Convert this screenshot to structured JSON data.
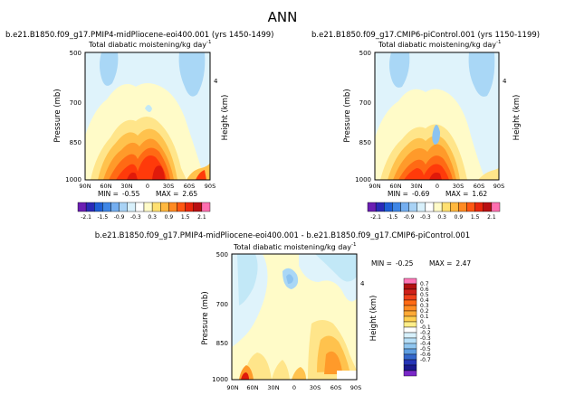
{
  "title": "ANN",
  "colors": {
    "warm_scale": [
      "#ffffff",
      "#fffbc8",
      "#ffe58a",
      "#ffc24d",
      "#ff9a2a",
      "#ff6a14",
      "#ff3a0a",
      "#e01a0a",
      "#b0100c"
    ],
    "cool_scale": [
      "#ffffff",
      "#dff3fb",
      "#c2e8f7",
      "#a9d7f6",
      "#8cc3f0",
      "#6aa7e8"
    ],
    "bar_a": [
      "#6b1fb3",
      "#2a2ab8",
      "#1f5fd6",
      "#3f86e6",
      "#74aef0",
      "#a8d2f5",
      "#d8f0fb",
      "#ffffff",
      "#fffbc8",
      "#ffe070",
      "#ffb83f",
      "#ff8a22",
      "#ff5712",
      "#e8260c",
      "#b80f12",
      "#ff6fb0"
    ],
    "bar_b": [
      "#ff78b8",
      "#b31212",
      "#d0201a",
      "#f0401a",
      "#ff6a14",
      "#ff8c22",
      "#ffaa36",
      "#ffd050",
      "#ffee8a",
      "#ffffff",
      "#d7f0fb",
      "#b8e0f8",
      "#8fc6f0",
      "#5f9fe2",
      "#3468cc",
      "#2535b8",
      "#1a1a90",
      "#7a28c8"
    ]
  },
  "chart_data": [
    {
      "type": "heatmap",
      "case": "b.e21.B1850.f09_g17.PMIP4-midPliocene-eoi400.001 (yrs 1450-1499)",
      "subtitle": "Total diabatic moistening/kg day",
      "subtitle_sup": "-1",
      "ylabel": "Pressure (mb)",
      "right_label": "Height (km)",
      "x_ticks": [
        "90N",
        "60N",
        "30N",
        "0",
        "30S",
        "60S",
        "90S"
      ],
      "y_ticks": [
        "500",
        "700",
        "850",
        "1000"
      ],
      "right_ticks": [
        "4"
      ],
      "ylim_mb": [
        1000,
        500
      ],
      "stats": {
        "min_label": "MIN =",
        "min": "-0.55",
        "max_label": "MAX =",
        "max": "2.65"
      },
      "cells": [
        {
          "lat": 6,
          "p": 975,
          "v": 2.4
        },
        {
          "lat": 16,
          "p": 960,
          "v": 1.9
        },
        {
          "lat": 2,
          "p": 940,
          "v": 1.5
        }
      ]
    },
    {
      "type": "heatmap",
      "case": "b.e21.B1850.f09_g17.CMIP6-piControl.001 (yrs 1150-1199)",
      "subtitle": "Total diabatic moistening/kg day",
      "subtitle_sup": "-1",
      "ylabel": "Pressure (mb)",
      "right_label": "Height (km)",
      "x_ticks": [
        "90N",
        "60N",
        "30N",
        "0",
        "30S",
        "60S",
        "90S"
      ],
      "y_ticks": [
        "500",
        "700",
        "850",
        "1000"
      ],
      "right_ticks": [
        "4"
      ],
      "ylim_mb": [
        1000,
        500
      ],
      "stats": {
        "min_label": "MIN =",
        "min": "-0.69",
        "max_label": "MAX =",
        "max": "1.62"
      }
    },
    {
      "type": "heatmap",
      "case": "b.e21.B1850.f09_g17.PMIP4-midPliocene-eoi400.001 - b.e21.B1850.f09_g17.CMIP6-piControl.001",
      "subtitle": "Total diabatic moistening/kg day",
      "subtitle_sup": "-1",
      "ylabel": "Pressure (mb)",
      "right_label": "Height (km)",
      "x_ticks": [
        "90N",
        "60N",
        "30N",
        "0",
        "30S",
        "60S",
        "90S"
      ],
      "y_ticks": [
        "500",
        "700",
        "850",
        "1000"
      ],
      "right_ticks": [
        "4"
      ],
      "ylim_mb": [
        1000,
        500
      ],
      "stats": {
        "min_label": "MIN =",
        "min": "-0.25",
        "max_label": "MAX =",
        "max": "2.47"
      }
    }
  ],
  "colorbar_shared": {
    "ticks": [
      "-2.1",
      "-1.5",
      "-0.9",
      "-0.3",
      "0.3",
      "0.9",
      "1.5",
      "2.1"
    ]
  },
  "colorbar_diff": {
    "ticks": [
      "0.7",
      "0.6",
      "0.5",
      "0.4",
      "0.3",
      "0.2",
      "0.1",
      "0",
      "-0.1",
      "-0.2",
      "-0.3",
      "-0.4",
      "-0.5",
      "-0.6",
      "-0.7"
    ]
  }
}
